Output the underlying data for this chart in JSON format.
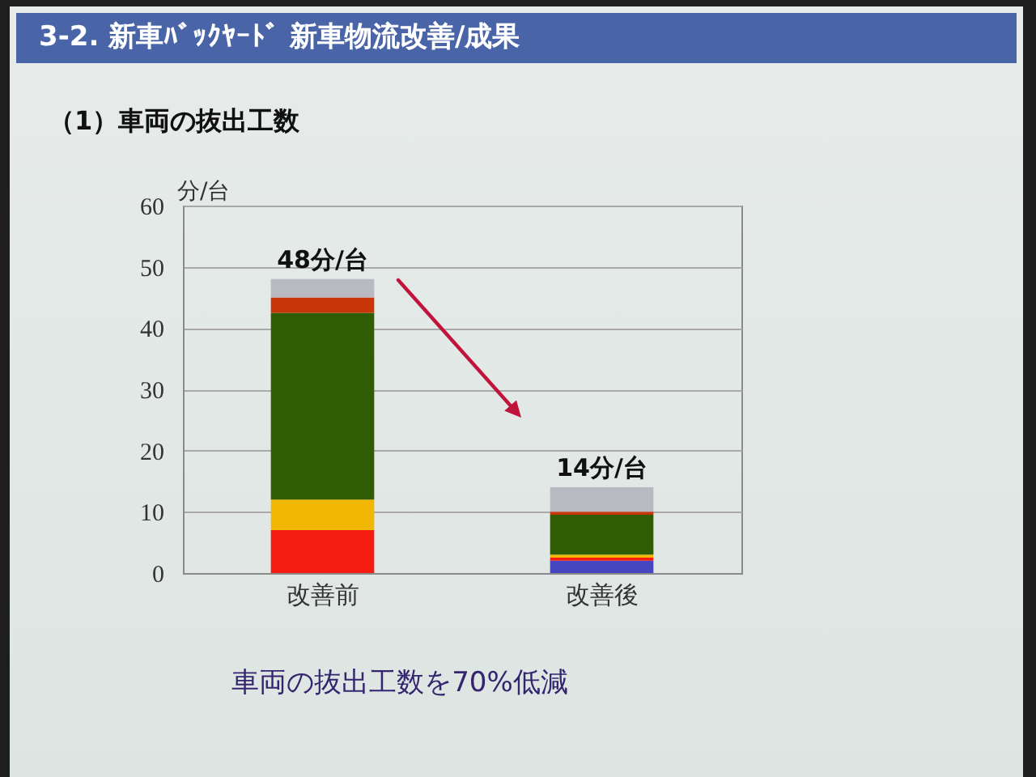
{
  "chart_data": {
    "type": "bar",
    "title": "3-2. 新車ﾊﾞｯｸﾔｰﾄﾞ 新車物流改善/成果",
    "subtitle": "（1）車両の抜出工数",
    "ylabel": "分/台",
    "annotations": [
      "車両の抜出工数を70%低減"
    ],
    "categories": [
      "改善前",
      "改善後"
    ],
    "series": [
      {
        "color": "#4646c0",
        "values": [
          null,
          2
        ]
      },
      {
        "color": "#f51c12",
        "values": [
          7,
          0.5
        ]
      },
      {
        "color": "#f2b705",
        "values": [
          5,
          0.5
        ]
      },
      {
        "color": "#305c06",
        "values": [
          30.5,
          6.5
        ]
      },
      {
        "color": "#c8360a",
        "values": [
          2.5,
          0.5
        ]
      },
      {
        "color": "#b9b9c2",
        "values": [
          3,
          4
        ]
      }
    ],
    "stacked": true,
    "totals": [
      "48分/台",
      "14分/台"
    ],
    "ylim": [
      0,
      60
    ],
    "yticks": [
      0,
      10,
      20,
      30,
      40,
      50,
      60
    ],
    "grid": "y",
    "legend": false
  }
}
